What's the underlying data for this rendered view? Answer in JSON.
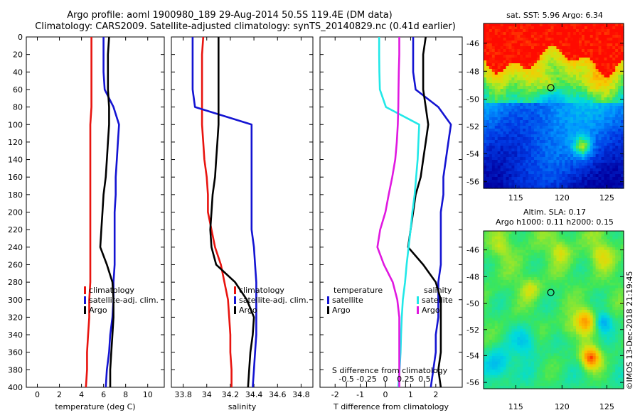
{
  "titles": {
    "line1": "Argo profile: aoml 1900980_189 29-Aug-2014 50.5S 119.4E (DM data)",
    "line2": "Climatology: CARS2009. Satellite-adjusted climatology: synTS_20140829.nc (0.41d earlier)"
  },
  "colors": {
    "climatology": "#e8140f",
    "satellite": "#1414d2",
    "argo": "#000000",
    "sat_t_diff": "#1414d2",
    "sat_s_diff": "#22e8e8",
    "clim_s_diff": "#e018e0"
  },
  "depth_ticks": [
    "0",
    "20",
    "40",
    "60",
    "80",
    "100",
    "120",
    "140",
    "160",
    "180",
    "200",
    "220",
    "240",
    "260",
    "280",
    "300",
    "320",
    "340",
    "360",
    "380",
    "400"
  ],
  "chart_data": [
    {
      "type": "line",
      "name": "temperature",
      "xlabel": "temperature (deg C)",
      "ylabel": "depth",
      "xlim": [
        -1,
        11.5
      ],
      "ylim": [
        400,
        0
      ],
      "x_ticks": [
        "0",
        "2",
        "4",
        "6",
        "8",
        "10"
      ],
      "depth": [
        0,
        20,
        40,
        60,
        80,
        100,
        120,
        140,
        160,
        180,
        200,
        220,
        240,
        260,
        280,
        300,
        320,
        340,
        360,
        380,
        400
      ],
      "series": [
        {
          "name": "climatology",
          "values": [
            4.9,
            4.9,
            4.9,
            4.9,
            4.9,
            4.8,
            4.8,
            4.8,
            4.8,
            4.8,
            4.8,
            4.8,
            4.8,
            4.8,
            4.8,
            4.7,
            4.7,
            4.6,
            4.5,
            4.5,
            4.4
          ]
        },
        {
          "name": "satellite-adj. clim.",
          "values": [
            6.0,
            6.0,
            6.0,
            6.1,
            6.9,
            7.4,
            7.3,
            7.2,
            7.1,
            7.1,
            7.0,
            7.0,
            7.0,
            7.0,
            6.9,
            6.9,
            6.8,
            6.6,
            6.5,
            6.3,
            6.2
          ]
        },
        {
          "name": "Argo",
          "values": [
            6.5,
            6.4,
            6.4,
            6.4,
            6.5,
            6.5,
            6.4,
            6.3,
            6.2,
            6.0,
            5.9,
            5.8,
            5.7,
            6.3,
            6.8,
            6.9,
            6.9,
            6.8,
            6.7,
            6.6,
            6.6
          ]
        }
      ],
      "legend": [
        "climatology",
        "satellite-adj. clim.",
        "Argo"
      ]
    },
    {
      "type": "line",
      "name": "salinity",
      "xlabel": "salinity",
      "ylabel": "depth",
      "xlim": [
        33.7,
        34.9
      ],
      "ylim": [
        400,
        0
      ],
      "x_ticks": [
        "33.8",
        "34",
        "34.2",
        "34.4",
        "34.6",
        "34.8"
      ],
      "depth": [
        0,
        20,
        40,
        60,
        80,
        100,
        120,
        140,
        160,
        180,
        200,
        220,
        240,
        260,
        280,
        300,
        320,
        340,
        360,
        380,
        400
      ],
      "series": [
        {
          "name": "climatology",
          "values": [
            33.97,
            33.96,
            33.96,
            33.96,
            33.96,
            33.96,
            33.97,
            33.98,
            34.0,
            34.01,
            34.01,
            34.04,
            34.07,
            34.12,
            34.15,
            34.18,
            34.19,
            34.2,
            34.2,
            34.21,
            34.21
          ]
        },
        {
          "name": "satellite-adj. clim.",
          "values": [
            33.88,
            33.88,
            33.88,
            33.88,
            33.9,
            34.38,
            34.38,
            34.38,
            34.38,
            34.38,
            34.38,
            34.38,
            34.4,
            34.41,
            34.42,
            34.42,
            34.42,
            34.42,
            34.41,
            34.4,
            34.39
          ]
        },
        {
          "name": "Argo",
          "values": [
            34.1,
            34.1,
            34.1,
            34.1,
            34.1,
            34.1,
            34.09,
            34.08,
            34.07,
            34.05,
            34.04,
            34.03,
            34.04,
            34.08,
            34.24,
            34.34,
            34.4,
            34.39,
            34.37,
            34.36,
            34.35
          ]
        }
      ],
      "legend": [
        "climatology",
        "satellite-adj. clim.",
        "Argo"
      ]
    },
    {
      "type": "line",
      "name": "differences",
      "xlabel": "T difference from climatology",
      "xlabel_top": "S difference from climatology",
      "ylabel": "depth",
      "xlim": [
        -2.6,
        3.05
      ],
      "ylim": [
        400,
        0
      ],
      "x_ticks": [
        "-2",
        "-1",
        "0",
        "1",
        "2"
      ],
      "s_ticks": [
        "-0.5",
        "-0.25",
        "0",
        "0.25",
        "0.5"
      ],
      "s_tick_positions_t_units": [
        -1.55,
        -0.75,
        0.0,
        0.8,
        1.55
      ],
      "depth": [
        0,
        20,
        40,
        60,
        80,
        100,
        120,
        140,
        160,
        180,
        200,
        220,
        240,
        260,
        280,
        300,
        320,
        340,
        360,
        380,
        400
      ],
      "series": [
        {
          "name": "satellite (temperature)",
          "values": [
            1.1,
            1.1,
            1.1,
            1.2,
            2.1,
            2.6,
            2.5,
            2.4,
            2.3,
            2.3,
            2.2,
            2.2,
            2.2,
            2.2,
            2.1,
            2.1,
            2.1,
            2.0,
            2.0,
            1.9,
            1.8
          ]
        },
        {
          "name": "Argo (temperature)",
          "values": [
            1.6,
            1.5,
            1.5,
            1.5,
            1.6,
            1.7,
            1.6,
            1.5,
            1.4,
            1.2,
            1.1,
            1.0,
            0.9,
            1.5,
            2.0,
            2.2,
            2.2,
            2.2,
            2.2,
            2.1,
            2.2
          ]
        },
        {
          "name": "satellite (salinity)",
          "values": [
            -0.25,
            -0.25,
            -0.24,
            -0.22,
            0.02,
            1.34,
            1.31,
            1.28,
            1.22,
            1.16,
            1.07,
            1.0,
            0.92,
            0.84,
            0.78,
            0.69,
            0.65,
            0.62,
            0.6,
            0.56,
            0.51
          ]
        },
        {
          "name": "climatology (salinity)",
          "values": [
            0.55,
            0.55,
            0.53,
            0.52,
            0.51,
            0.49,
            0.45,
            0.39,
            0.27,
            0.13,
            0.0,
            -0.21,
            -0.32,
            -0.06,
            0.29,
            0.47,
            0.55,
            0.55,
            0.55,
            0.55,
            0.55
          ]
        }
      ],
      "legend_left_title": "temperature",
      "legend_left": [
        "satellite",
        "Argo"
      ],
      "legend_right_title": "salinity",
      "legend_right": [
        "satellite",
        "Argo"
      ]
    },
    {
      "type": "heatmap",
      "name": "sst-map",
      "title": "sat. SST: 5.96 Argo: 6.34",
      "x_ticks": [
        "115",
        "120",
        "125"
      ],
      "y_ticks": [
        "-46",
        "-48",
        "-50",
        "-52",
        "-54",
        "-56"
      ],
      "argo_marker": {
        "lon": 119.4,
        "lat": -50.5
      }
    },
    {
      "type": "heatmap",
      "name": "sla-map",
      "title_line1": "Altim. SLA: 0.17",
      "title_line2": "Argo h1000: 0.11 h2000: 0.15",
      "x_ticks": [
        "115",
        "120",
        "125"
      ],
      "y_ticks": [
        "-46",
        "-48",
        "-50",
        "-52",
        "-54",
        "-56"
      ],
      "argo_marker": {
        "lon": 119.4,
        "lat": -50.5
      }
    }
  ],
  "watermark": "©IMOS 13-Dec-2018 21:19:45"
}
